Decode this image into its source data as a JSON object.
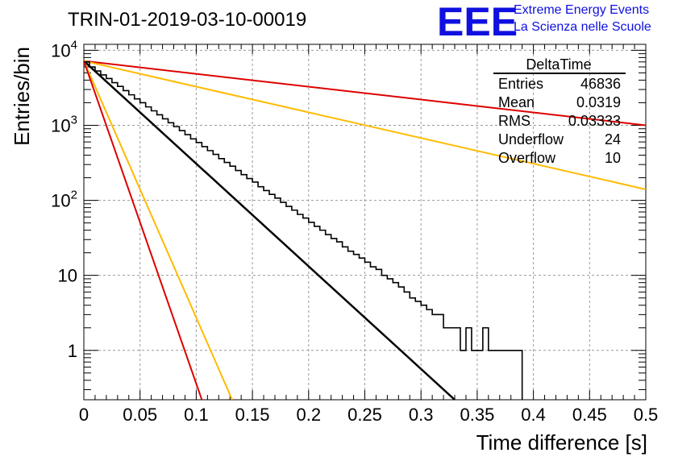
{
  "header": {
    "run_title": "TRIN-01-2019-03-10-00019",
    "logo_text": "EEE",
    "logo_line1": "Extreme Energy Events",
    "logo_line2": "La Scienza nelle Scuole",
    "logo_color": "#1010e0"
  },
  "stats_box": {
    "title": "DeltaTime",
    "rows": [
      {
        "label": "Entries",
        "value": "46836"
      },
      {
        "label": "Mean",
        "value": "0.0319"
      },
      {
        "label": "RMS",
        "value": "0.03333"
      },
      {
        "label": "Underflow",
        "value": "24"
      },
      {
        "label": "Overflow",
        "value": "10"
      }
    ]
  },
  "chart_data": {
    "type": "line",
    "xlabel": "Time difference [s]",
    "ylabel": "Entries/bin",
    "xlim": [
      0,
      0.5
    ],
    "ylim": [
      0.22,
      12000
    ],
    "y_scale": "log",
    "grid": true,
    "x_ticks": [
      "0",
      "0.05",
      "0.1",
      "0.15",
      "0.2",
      "0.25",
      "0.3",
      "0.35",
      "0.4",
      "0.45",
      "0.5"
    ],
    "y_ticks": [
      {
        "value": 1,
        "base": "1",
        "exp": ""
      },
      {
        "value": 10,
        "base": "10",
        "exp": ""
      },
      {
        "value": 100,
        "base": "10",
        "exp": "2"
      },
      {
        "value": 1000,
        "base": "10",
        "exp": "3"
      },
      {
        "value": 10000,
        "base": "10",
        "exp": "4"
      }
    ],
    "histogram": {
      "color": "#000000",
      "bin_width": 0.005,
      "counts": [
        7000,
        6000,
        5300,
        4700,
        4200,
        3700,
        3300,
        2900,
        2550,
        2250,
        2000,
        1760,
        1560,
        1380,
        1220,
        1080,
        960,
        850,
        750,
        660,
        590,
        520,
        460,
        410,
        360,
        320,
        285,
        250,
        220,
        195,
        175,
        152,
        135,
        120,
        107,
        94,
        83,
        74,
        65,
        58,
        51,
        45,
        40,
        35,
        31,
        28,
        24,
        21,
        19,
        17,
        15,
        13,
        12,
        10,
        9,
        8,
        7,
        6,
        5,
        4.5,
        4,
        3.5,
        3,
        3,
        2,
        2,
        2,
        1,
        2,
        1,
        1,
        2,
        1,
        1,
        1,
        1,
        1,
        1,
        0,
        0,
        0,
        0,
        0,
        0,
        0,
        0,
        0,
        0,
        0,
        0,
        0,
        0,
        0,
        0,
        0,
        0,
        0,
        0,
        0,
        0
      ]
    },
    "series": [
      {
        "color": "#000000",
        "points": [
          [
            0,
            7200
          ],
          [
            0.33,
            0.22
          ]
        ]
      },
      {
        "color": "#dd0000",
        "points": [
          [
            0,
            7200
          ],
          [
            0.5,
            1000
          ]
        ]
      },
      {
        "color": "#ffbb00",
        "points": [
          [
            0,
            7200
          ],
          [
            0.5,
            140
          ]
        ]
      },
      {
        "color": "#ffbb00",
        "points": [
          [
            0,
            7200
          ],
          [
            0.132,
            0.22
          ]
        ]
      },
      {
        "color": "#dd0000",
        "points": [
          [
            0,
            7200
          ],
          [
            0.105,
            0.22
          ]
        ]
      }
    ]
  }
}
